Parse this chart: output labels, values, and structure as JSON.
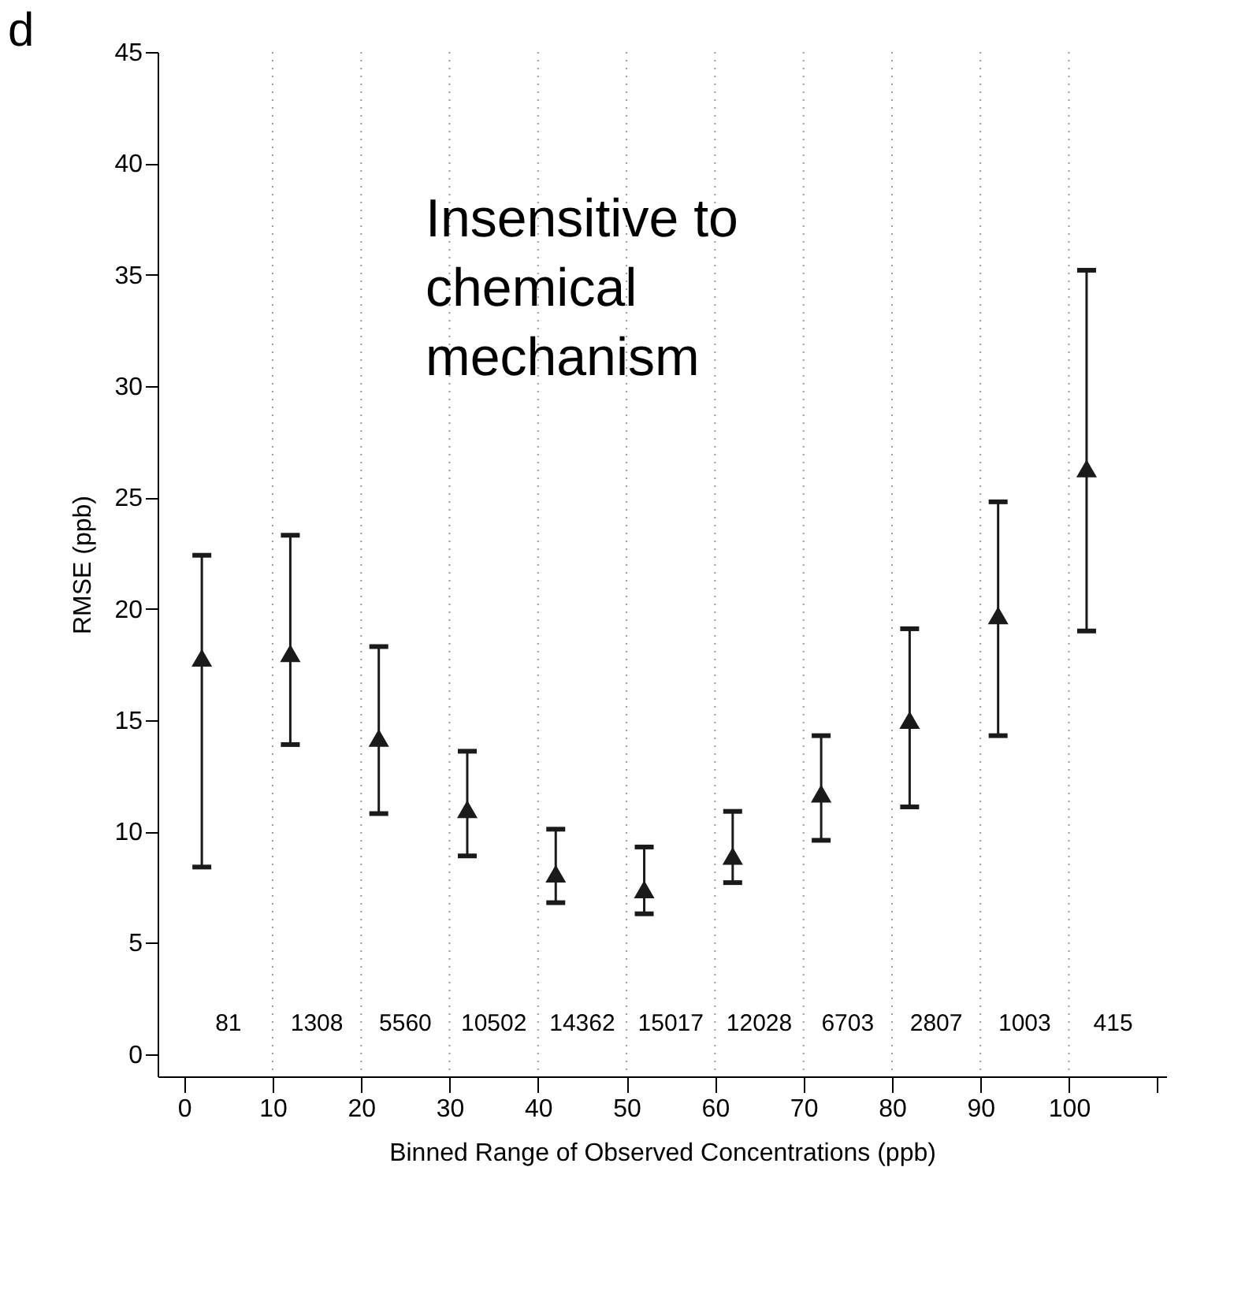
{
  "chart_data": {
    "type": "scatter",
    "title": "d",
    "xlabel": "Binned Range of Observed Concentrations (ppb)",
    "ylabel": "RMSE (ppb)",
    "x": [
      2,
      12,
      22,
      32,
      42,
      52,
      62,
      72,
      82,
      92,
      102
    ],
    "series": [
      {
        "color": "#1a1a1a",
        "values": [
          17.8,
          18.0,
          14.2,
          11.0,
          8.1,
          7.4,
          8.9,
          11.7,
          15.0,
          19.7,
          26.3
        ],
        "errors": [
          [
            8.4,
            22.4
          ],
          [
            13.9,
            23.3
          ],
          [
            10.8,
            18.3
          ],
          [
            8.9,
            13.6
          ],
          [
            6.8,
            10.1
          ],
          [
            6.3,
            9.3
          ],
          [
            7.7,
            10.9
          ],
          [
            9.6,
            14.3
          ],
          [
            11.1,
            19.1
          ],
          [
            14.3,
            24.8
          ],
          [
            19.0,
            35.2
          ]
        ]
      }
    ],
    "marker": "triangle",
    "xlim": [
      -3,
      111
    ],
    "ylim": [
      -1,
      45
    ],
    "xticks": [
      0,
      10,
      20,
      30,
      40,
      50,
      60,
      70,
      80,
      90,
      100,
      {
        "value": 110,
        "label": null
      }
    ],
    "yticks": [
      0,
      5,
      10,
      15,
      20,
      25,
      30,
      35,
      40,
      45
    ],
    "ref_lines": [
      {
        "axis": "x",
        "value": 10,
        "line_style": "dotted",
        "color": "#999999"
      },
      {
        "axis": "x",
        "value": 20,
        "line_style": "dotted",
        "color": "#999999"
      },
      {
        "axis": "x",
        "value": 30,
        "line_style": "dotted",
        "color": "#999999"
      },
      {
        "axis": "x",
        "value": 40,
        "line_style": "dotted",
        "color": "#999999"
      },
      {
        "axis": "x",
        "value": 50,
        "line_style": "dotted",
        "color": "#999999"
      },
      {
        "axis": "x",
        "value": 60,
        "line_style": "dotted",
        "color": "#999999"
      },
      {
        "axis": "x",
        "value": 70,
        "line_style": "dotted",
        "color": "#999999"
      },
      {
        "axis": "x",
        "value": 80,
        "line_style": "dotted",
        "color": "#999999"
      },
      {
        "axis": "x",
        "value": 90,
        "line_style": "dotted",
        "color": "#999999"
      },
      {
        "axis": "x",
        "value": 100,
        "line_style": "dotted",
        "color": "#999999"
      }
    ],
    "annotations": [
      "Insensitive to\nchemical\nmechanism",
      "81",
      "1308",
      "5560",
      "10502",
      "14362",
      "15017",
      "12028",
      "6703",
      "2807",
      "1003",
      "415"
    ],
    "grid": false
  }
}
